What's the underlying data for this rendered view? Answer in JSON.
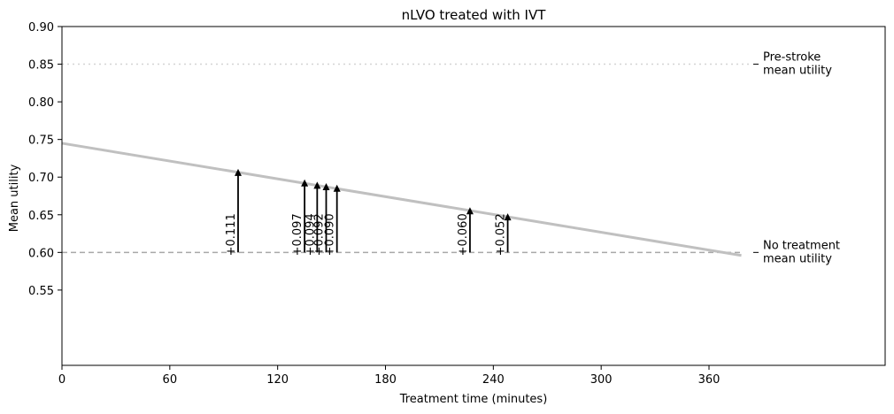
{
  "chart_data": {
    "type": "line",
    "title": "nLVO treated with IVT",
    "xlabel": "Treatment time (minutes)",
    "ylabel": "Mean utility",
    "xlim": [
      0,
      458
    ],
    "ylim": [
      0.45,
      0.9
    ],
    "xticks": [
      0,
      60,
      120,
      180,
      240,
      300,
      360
    ],
    "xtick_labels": [
      "0",
      "60",
      "120",
      "180",
      "240",
      "300",
      "360"
    ],
    "yticks": [
      0.55,
      0.6,
      0.65,
      0.7,
      0.75,
      0.8,
      0.85,
      0.9
    ],
    "ytick_labels": [
      "0.55",
      "0.60",
      "0.65",
      "0.70",
      "0.75",
      "0.80",
      "0.85",
      "0.90"
    ],
    "grid": false,
    "trend_line": {
      "x": [
        0,
        378
      ],
      "y": [
        0.745,
        0.596
      ],
      "color": "#c0c0c0"
    },
    "reference_lines": [
      {
        "y": 0.85,
        "style": "dotted",
        "color": "#d4d4d4",
        "label": "Pre-stroke\nmean utility",
        "x_end": 383
      },
      {
        "y": 0.6,
        "style": "dashed",
        "color": "#a8a8a8",
        "label": "No treatment\nmean utility",
        "x_end": 378
      }
    ],
    "arrows": [
      {
        "x": 98,
        "y_from": 0.6,
        "y_to": 0.711,
        "label": "+0.111"
      },
      {
        "x": 135,
        "y_from": 0.6,
        "y_to": 0.697,
        "label": "+0.097"
      },
      {
        "x": 142,
        "y_from": 0.6,
        "y_to": 0.694,
        "label": "+0.094"
      },
      {
        "x": 147,
        "y_from": 0.6,
        "y_to": 0.692,
        "label": "+0.092"
      },
      {
        "x": 153,
        "y_from": 0.6,
        "y_to": 0.69,
        "label": "+0.090"
      },
      {
        "x": 227,
        "y_from": 0.6,
        "y_to": 0.66,
        "label": "+0.060"
      },
      {
        "x": 248,
        "y_from": 0.6,
        "y_to": 0.652,
        "label": "+0.052"
      }
    ]
  }
}
